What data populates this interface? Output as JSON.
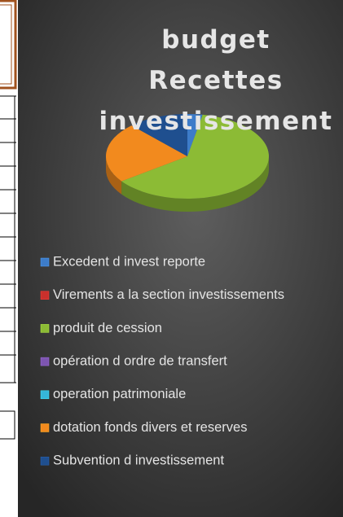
{
  "chart_data": {
    "type": "pie",
    "title": "budget Recettes investissement",
    "categories": [
      "Excedent d invest reporte",
      "Virements a la section investissements",
      "produit de cession",
      "opération d ordre de transfert",
      "operation patrimoniale",
      "dotation fonds divers et reserves",
      "Subvention d investissement"
    ],
    "values": [
      3,
      0,
      62,
      0,
      0,
      23,
      12
    ],
    "colors": [
      "#3d7cc9",
      "#c9302c",
      "#8cbb35",
      "#7d55b0",
      "#35b6d9",
      "#f28a1e",
      "#1f4f8f"
    ],
    "legend": "bottom"
  }
}
